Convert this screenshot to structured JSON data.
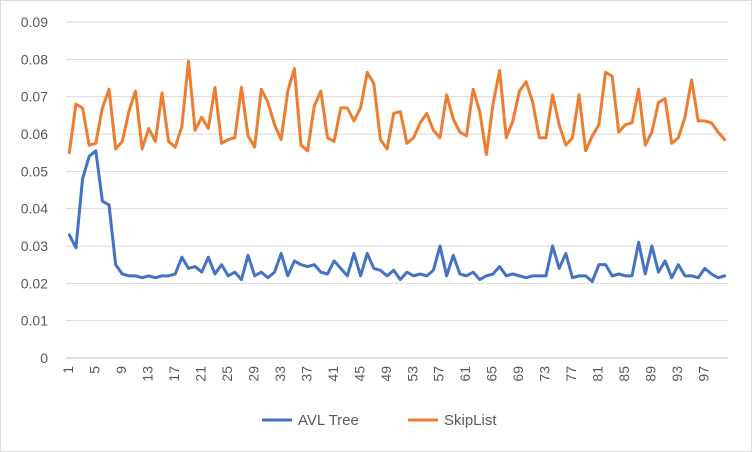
{
  "chart_data": {
    "type": "line",
    "title": "",
    "xlabel": "",
    "ylabel": "",
    "ylim": [
      0,
      0.09
    ],
    "yticks": [
      "0",
      "0.01",
      "0.02",
      "0.03",
      "0.04",
      "0.05",
      "0.06",
      "0.07",
      "0.08",
      "0.09"
    ],
    "x_start": 1,
    "x_end": 100,
    "xticks": [
      "1",
      "5",
      "9",
      "13",
      "17",
      "21",
      "25",
      "29",
      "33",
      "37",
      "41",
      "45",
      "49",
      "53",
      "57",
      "61",
      "65",
      "69",
      "73",
      "77",
      "81",
      "85",
      "89",
      "93",
      "97"
    ],
    "grid": true,
    "legend_position": "bottom",
    "series": [
      {
        "name": "AVL Tree",
        "color": "#4472c4",
        "values": [
          0.033,
          0.0295,
          0.048,
          0.054,
          0.0555,
          0.042,
          0.041,
          0.025,
          0.0225,
          0.022,
          0.022,
          0.0215,
          0.022,
          0.0215,
          0.022,
          0.022,
          0.0225,
          0.027,
          0.024,
          0.0245,
          0.023,
          0.027,
          0.0225,
          0.025,
          0.022,
          0.023,
          0.021,
          0.0275,
          0.022,
          0.023,
          0.0215,
          0.023,
          0.028,
          0.022,
          0.026,
          0.025,
          0.0245,
          0.025,
          0.023,
          0.0225,
          0.026,
          0.024,
          0.022,
          0.028,
          0.022,
          0.028,
          0.024,
          0.0235,
          0.022,
          0.0235,
          0.021,
          0.023,
          0.022,
          0.0225,
          0.022,
          0.0235,
          0.03,
          0.022,
          0.0275,
          0.0225,
          0.022,
          0.023,
          0.021,
          0.022,
          0.0225,
          0.0245,
          0.022,
          0.0225,
          0.022,
          0.0215,
          0.022,
          0.022,
          0.022,
          0.03,
          0.024,
          0.028,
          0.0215,
          0.022,
          0.022,
          0.0205,
          0.025,
          0.025,
          0.022,
          0.0225,
          0.022,
          0.022,
          0.031,
          0.0225,
          0.03,
          0.023,
          0.026,
          0.0215,
          0.025,
          0.022,
          0.022,
          0.0215,
          0.024,
          0.0225,
          0.0215,
          0.022
        ]
      },
      {
        "name": "SkipList",
        "color": "#ed7d31",
        "values": [
          0.055,
          0.068,
          0.067,
          0.057,
          0.0575,
          0.067,
          0.072,
          0.056,
          0.058,
          0.066,
          0.0715,
          0.056,
          0.0615,
          0.058,
          0.071,
          0.058,
          0.0565,
          0.062,
          0.0795,
          0.061,
          0.0645,
          0.0615,
          0.0725,
          0.0575,
          0.0585,
          0.059,
          0.0725,
          0.0595,
          0.0565,
          0.072,
          0.0685,
          0.0625,
          0.0585,
          0.0715,
          0.0775,
          0.057,
          0.0555,
          0.0675,
          0.0715,
          0.059,
          0.058,
          0.067,
          0.067,
          0.0635,
          0.067,
          0.0765,
          0.0735,
          0.0585,
          0.056,
          0.0655,
          0.066,
          0.0575,
          0.059,
          0.063,
          0.0655,
          0.061,
          0.059,
          0.0705,
          0.064,
          0.0605,
          0.0595,
          0.072,
          0.066,
          0.0545,
          0.068,
          0.077,
          0.059,
          0.0635,
          0.0715,
          0.074,
          0.0685,
          0.059,
          0.059,
          0.0705,
          0.0625,
          0.057,
          0.059,
          0.0705,
          0.0555,
          0.0595,
          0.0625,
          0.0765,
          0.0755,
          0.0605,
          0.0625,
          0.063,
          0.072,
          0.057,
          0.0605,
          0.0685,
          0.0695,
          0.0575,
          0.059,
          0.0645,
          0.0745,
          0.0635,
          0.0635,
          0.063,
          0.0605,
          0.0585
        ]
      }
    ]
  }
}
